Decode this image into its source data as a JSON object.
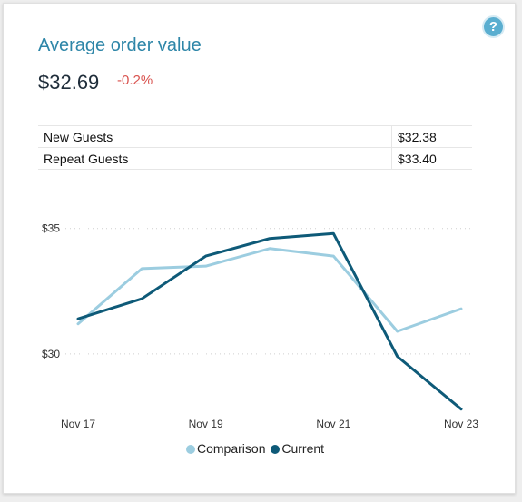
{
  "card": {
    "title": "Average order value",
    "value": "$32.69",
    "change": "-0.2%",
    "help_icon": "question-circle-icon",
    "help_glyph": "?"
  },
  "table": {
    "rows": [
      {
        "label": "New Guests",
        "value": "$32.38"
      },
      {
        "label": "Repeat Guests",
        "value": "$33.40"
      }
    ]
  },
  "legend": {
    "items": [
      {
        "label": "Comparison",
        "color": "#9ccde0"
      },
      {
        "label": "Current",
        "color": "#0e5a78"
      }
    ]
  },
  "chart_data": {
    "type": "line",
    "x": [
      "Nov 17",
      "Nov 18",
      "Nov 19",
      "Nov 20",
      "Nov 21",
      "Nov 22",
      "Nov 23"
    ],
    "x_tick_labels": [
      "Nov 17",
      "Nov 19",
      "Nov 21",
      "Nov 23"
    ],
    "y_tick_labels": [
      "$35",
      "$30"
    ],
    "y_ticks": [
      35,
      30
    ],
    "ylim": [
      27.1,
      36.4
    ],
    "grid": "horizontal dotted",
    "legend_position": "bottom",
    "series": [
      {
        "name": "Comparison",
        "color": "#9ccde0",
        "values": [
          31.2,
          33.4,
          33.5,
          34.2,
          33.9,
          30.9,
          31.8
        ]
      },
      {
        "name": "Current",
        "color": "#0e5a78",
        "values": [
          31.4,
          32.2,
          33.9,
          34.6,
          34.8,
          29.9,
          27.8
        ]
      }
    ]
  }
}
